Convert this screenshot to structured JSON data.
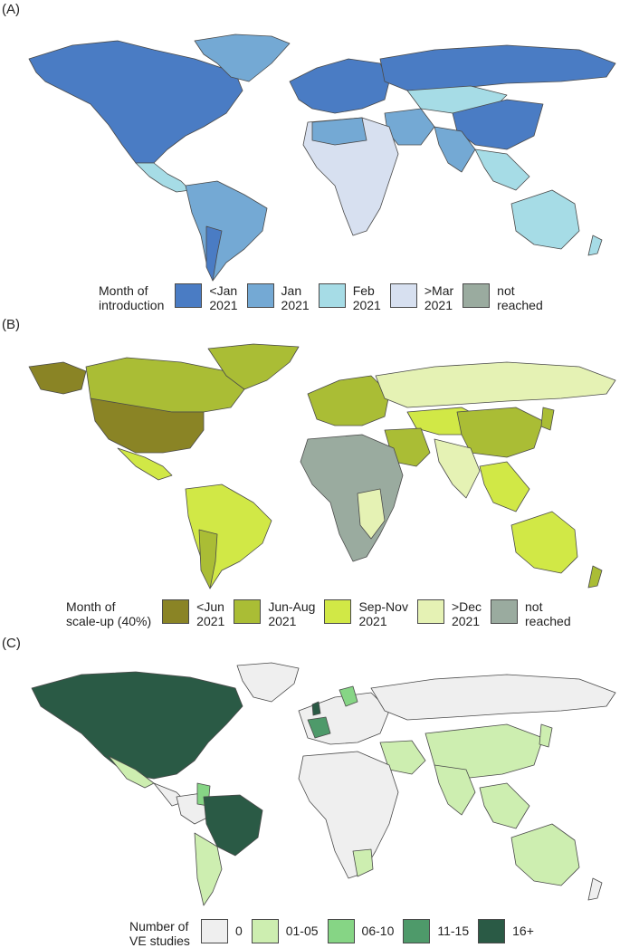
{
  "panels": [
    {
      "label": "(A)",
      "legend": {
        "title_lines": [
          "Month of",
          "introduction"
        ],
        "items": [
          {
            "lines": [
              "<Jan",
              "2021"
            ],
            "color": "#4a7cc4"
          },
          {
            "lines": [
              "Jan",
              "2021"
            ],
            "color": "#74a9d4"
          },
          {
            "lines": [
              "Feb",
              "2021"
            ],
            "color": "#a6dce6"
          },
          {
            "lines": [
              ">Mar",
              "2021"
            ],
            "color": "#d7e0f0"
          },
          {
            "lines": [
              "not",
              "reached"
            ],
            "color": "#9aab9f"
          }
        ]
      }
    },
    {
      "label": "(B)",
      "legend": {
        "title_lines": [
          "Month of",
          "scale-up (40%)"
        ],
        "items": [
          {
            "lines": [
              "<Jun",
              "2021"
            ],
            "color": "#8a8425"
          },
          {
            "lines": [
              "Jun-Aug",
              "2021"
            ],
            "color": "#aabd35"
          },
          {
            "lines": [
              "Sep-Nov",
              "2021"
            ],
            "color": "#d1e846"
          },
          {
            "lines": [
              ">Dec",
              "2021"
            ],
            "color": "#e5f2b4"
          },
          {
            "lines": [
              "not",
              "reached"
            ],
            "color": "#9aab9f"
          }
        ]
      }
    },
    {
      "label": "(C)",
      "legend": {
        "title_lines": [
          "Number of",
          "VE studies"
        ],
        "items": [
          {
            "lines": [
              "0"
            ],
            "color": "#efefef"
          },
          {
            "lines": [
              "01-05"
            ],
            "color": "#cdeeb0"
          },
          {
            "lines": [
              "06-10"
            ],
            "color": "#86d585"
          },
          {
            "lines": [
              "11-15"
            ],
            "color": "#4e9a6a"
          },
          {
            "lines": [
              "16+"
            ],
            "color": "#2a5a45"
          }
        ]
      }
    }
  ],
  "colors": {
    "border": "#4a4a4a"
  }
}
